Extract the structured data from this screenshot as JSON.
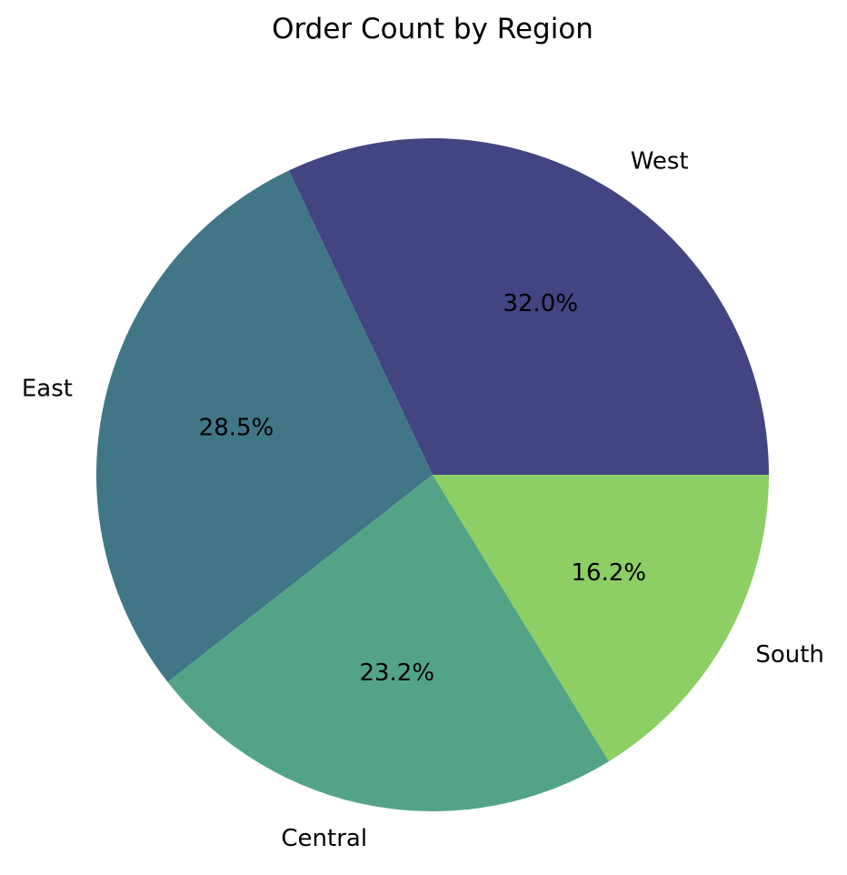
{
  "chart_data": {
    "type": "pie",
    "title": "Order Count by Region",
    "slices": [
      {
        "label": "West",
        "value": 32.0,
        "pct_label": "32.0%",
        "color": "#424581"
      },
      {
        "label": "East",
        "value": 28.5,
        "pct_label": "28.5%",
        "color": "#417687"
      },
      {
        "label": "Central",
        "value": 23.2,
        "pct_label": "23.2%",
        "color": "#53a486"
      },
      {
        "label": "South",
        "value": 16.2,
        "pct_label": "16.2%",
        "color": "#8dce65"
      }
    ],
    "start_angle_deg": 0,
    "direction": "counterclockwise",
    "legend": "none"
  }
}
